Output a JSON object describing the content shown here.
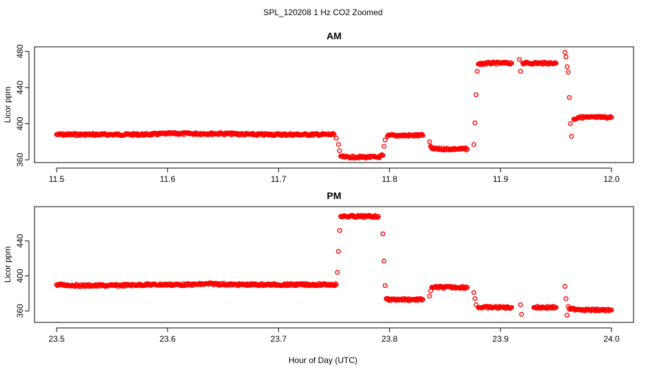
{
  "figure": {
    "title": "SPL_120208  1 Hz CO2 Zoomed",
    "xlabel": "Hour of Day (UTC)",
    "point_color": "#ff0000"
  },
  "chart_data": [
    {
      "type": "scatter",
      "title": "AM",
      "xlabel": "",
      "ylabel": "Licor ppm",
      "xlim": [
        11.5,
        12.0
      ],
      "ylim": [
        360,
        482
      ],
      "xticks": [
        "11.5",
        "11.6",
        "11.7",
        "11.8",
        "11.9",
        "12.0"
      ],
      "yticks": [
        "360",
        "400",
        "440",
        "480"
      ],
      "grid": false,
      "series": [
        {
          "x": [
            11.5,
            11.52,
            11.55,
            11.58,
            11.6,
            11.62,
            11.65,
            11.68,
            11.7,
            11.72,
            11.75,
            11.752,
            11.754,
            11.755,
            11.756,
            11.76,
            11.77,
            11.78,
            11.79,
            11.794,
            11.795,
            11.796,
            11.798,
            11.8,
            11.81,
            11.82,
            11.83,
            11.836,
            11.837,
            11.838,
            11.84,
            11.85,
            11.86,
            11.87,
            11.876,
            11.877,
            11.878,
            11.879,
            11.88,
            11.89,
            11.9,
            11.91,
            11.917,
            11.918,
            11.92,
            11.93,
            11.94,
            11.95,
            11.958,
            11.959,
            11.96,
            11.961,
            11.962,
            11.963,
            11.964,
            11.966,
            11.97,
            11.98,
            11.99,
            12.0
          ],
          "y": [
            388,
            388,
            388,
            388,
            389,
            389,
            389,
            388,
            388,
            388,
            388,
            384,
            377,
            370,
            364,
            363,
            363,
            363,
            363,
            365,
            375,
            382,
            386,
            387,
            387,
            387,
            387,
            380,
            375,
            373,
            372,
            372,
            372,
            372,
            377,
            401,
            432,
            458,
            466,
            467,
            467,
            467,
            471,
            458,
            467,
            467,
            467,
            467,
            479,
            474,
            463,
            457,
            429,
            400,
            386,
            405,
            407,
            407,
            407,
            407
          ]
        }
      ]
    },
    {
      "type": "scatter",
      "title": "PM",
      "xlabel": "Hour of Day (UTC)",
      "ylabel": "Licor ppm",
      "xlim": [
        23.5,
        24.0
      ],
      "ylim": [
        350,
        476
      ],
      "xticks": [
        "23.5",
        "23.6",
        "23.7",
        "23.8",
        "23.9",
        "24.0"
      ],
      "yticks": [
        "360",
        "400",
        "440"
      ],
      "grid": false,
      "series": [
        {
          "x": [
            23.5,
            23.52,
            23.55,
            23.58,
            23.6,
            23.62,
            23.64,
            23.66,
            23.68,
            23.7,
            23.72,
            23.74,
            23.752,
            23.753,
            23.754,
            23.755,
            23.756,
            23.76,
            23.77,
            23.78,
            23.79,
            23.794,
            23.795,
            23.796,
            23.797,
            23.798,
            23.8,
            23.81,
            23.82,
            23.83,
            23.836,
            23.837,
            23.838,
            23.84,
            23.85,
            23.86,
            23.87,
            23.876,
            23.877,
            23.878,
            23.88,
            23.89,
            23.9,
            23.91,
            23.918,
            23.919,
            23.93,
            23.94,
            23.95,
            23.958,
            23.959,
            23.96,
            23.961,
            23.962,
            23.97,
            23.98,
            23.99,
            24.0
          ],
          "y": [
            390,
            389,
            389,
            390,
            390,
            390,
            391,
            390,
            390,
            390,
            390,
            390,
            390,
            404,
            428,
            452,
            468,
            468,
            468,
            468,
            468,
            448,
            417,
            389,
            374,
            373,
            373,
            373,
            373,
            373,
            377,
            383,
            387,
            387,
            387,
            387,
            387,
            381,
            374,
            367,
            364,
            364,
            364,
            364,
            367,
            356,
            364,
            364,
            364,
            388,
            374,
            355,
            365,
            362,
            362,
            361,
            361,
            361
          ]
        }
      ]
    }
  ]
}
